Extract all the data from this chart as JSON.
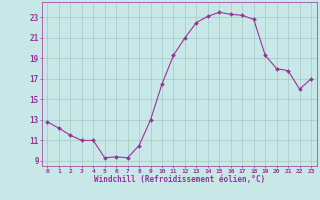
{
  "x": [
    0,
    1,
    2,
    3,
    4,
    5,
    6,
    7,
    8,
    9,
    10,
    11,
    12,
    13,
    14,
    15,
    16,
    17,
    18,
    19,
    20,
    21,
    22,
    23
  ],
  "y": [
    12.8,
    12.2,
    11.5,
    11.0,
    11.0,
    9.3,
    9.4,
    9.3,
    10.5,
    13.0,
    16.5,
    19.3,
    21.0,
    22.5,
    23.1,
    23.5,
    23.3,
    23.2,
    22.8,
    19.3,
    18.0,
    17.8,
    16.0,
    17.0
  ],
  "line_color": "#993399",
  "marker": "D",
  "marker_size": 2.0,
  "bg_color": "#c8e8e8",
  "grid_color": "#a0c8c8",
  "xlabel": "Windchill (Refroidissement éolien,°C)",
  "xlabel_color": "#993399",
  "tick_color": "#993399",
  "xlim": [
    -0.5,
    23.5
  ],
  "ylim": [
    8.5,
    24.5
  ],
  "yticks": [
    9,
    11,
    13,
    15,
    17,
    19,
    21,
    23
  ],
  "xticks": [
    0,
    1,
    2,
    3,
    4,
    5,
    6,
    7,
    8,
    9,
    10,
    11,
    12,
    13,
    14,
    15,
    16,
    17,
    18,
    19,
    20,
    21,
    22,
    23
  ],
  "ytick_fontsize": 5.5,
  "xtick_fontsize": 4.5,
  "xlabel_fontsize": 5.5
}
